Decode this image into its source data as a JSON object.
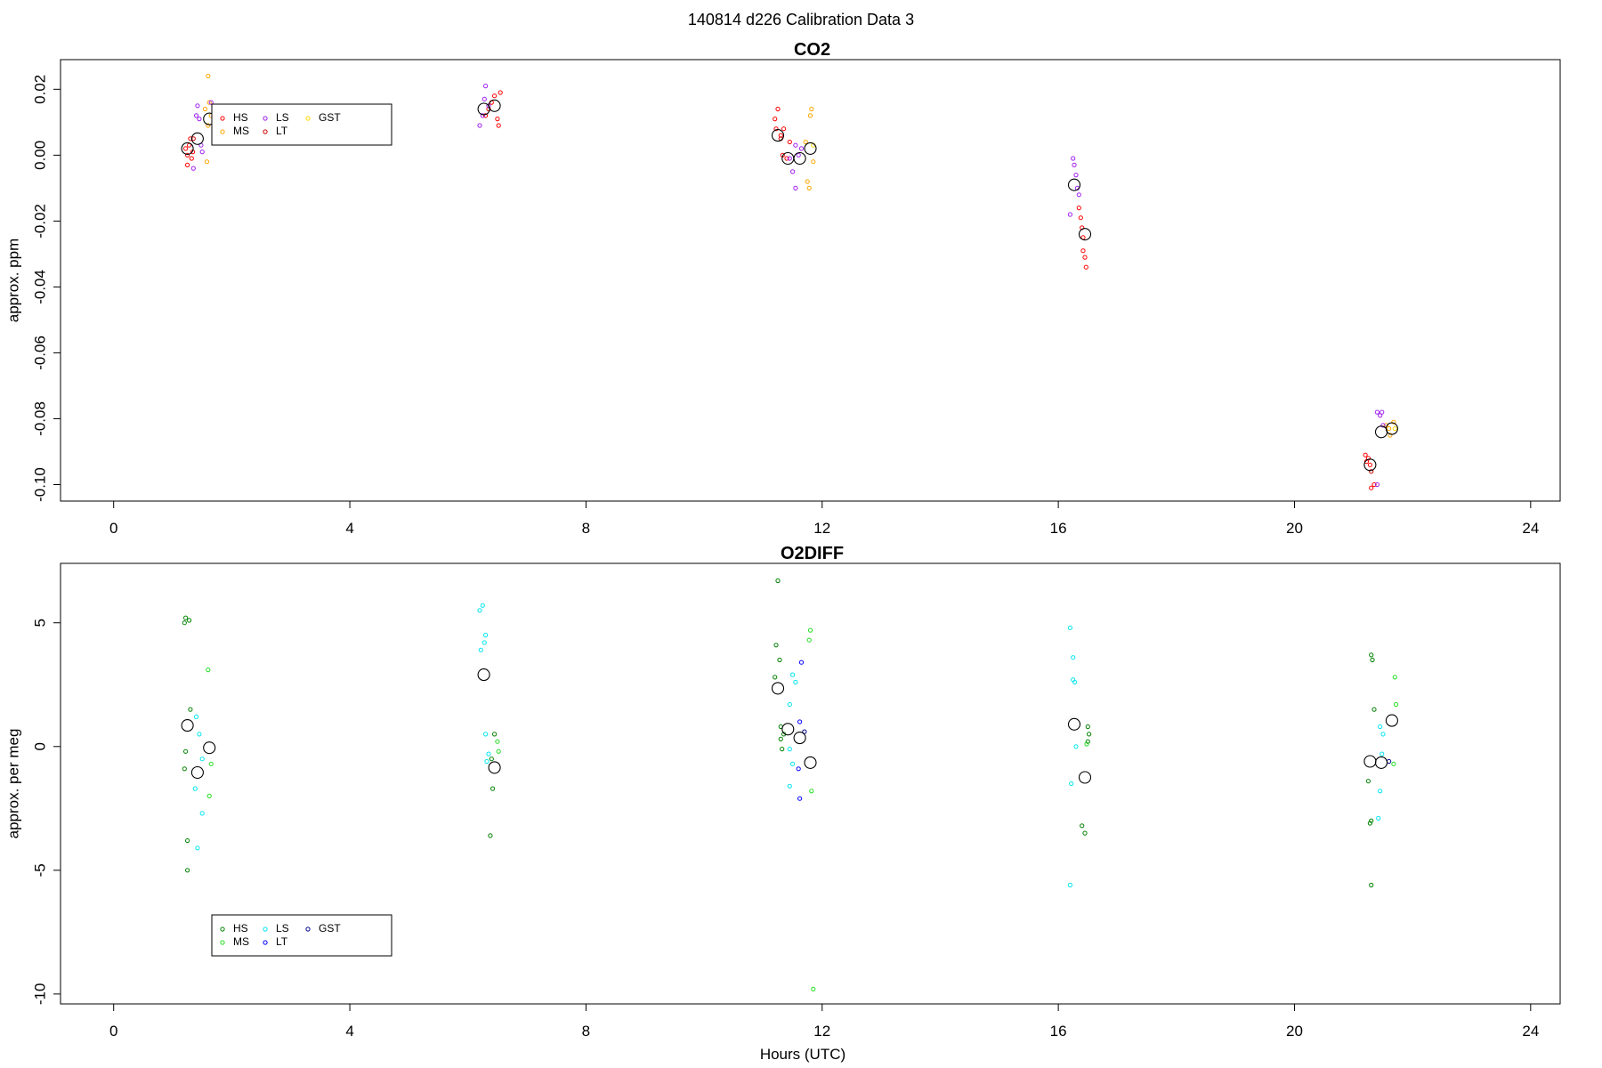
{
  "page": {
    "title": "140814   d226   Calibration Data 3",
    "xlabel": "Hours (UTC)"
  },
  "chart_data": [
    {
      "type": "scatter",
      "title": "CO2",
      "ylabel": "approx. ppm",
      "xlim": [
        -0.9,
        24.5
      ],
      "ylim": [
        -0.105,
        0.029
      ],
      "xticks": [
        0,
        4,
        8,
        12,
        16,
        20,
        24
      ],
      "yticks": [
        0.02,
        0.0,
        -0.02,
        -0.04,
        -0.06,
        -0.08,
        -0.1
      ],
      "ytick_labels": [
        "0.02",
        "0.00",
        "-0.02",
        "-0.04",
        "-0.06",
        "-0.08",
        "-0.10"
      ],
      "legend": {
        "placement": "top-left",
        "entries": [
          "HS",
          "MS",
          "LS",
          "LT",
          "GST"
        ]
      },
      "series": [
        {
          "name": "HS",
          "color": "#ff0000",
          "marker": "small-circle",
          "points": [
            [
              1.22,
              0.002
            ],
            [
              1.25,
              -0.003
            ],
            [
              1.28,
              0.003
            ],
            [
              1.3,
              0.005
            ],
            [
              1.32,
              -0.001
            ],
            [
              1.34,
              0.001
            ],
            [
              1.25,
              0.0
            ],
            [
              6.3,
              0.012
            ],
            [
              6.35,
              0.014
            ],
            [
              6.4,
              0.016
            ],
            [
              6.45,
              0.018
            ],
            [
              6.5,
              0.011
            ],
            [
              6.52,
              0.009
            ],
            [
              6.55,
              0.019
            ],
            [
              11.2,
              0.011
            ],
            [
              11.22,
              0.008
            ],
            [
              11.25,
              0.014
            ],
            [
              11.3,
              0.006
            ],
            [
              11.33,
              0.0
            ],
            [
              11.35,
              0.008
            ],
            [
              11.4,
              -0.001
            ],
            [
              11.45,
              0.004
            ],
            [
              16.35,
              -0.016
            ],
            [
              16.38,
              -0.019
            ],
            [
              16.4,
              -0.022
            ],
            [
              16.42,
              -0.025
            ],
            [
              16.42,
              -0.029
            ],
            [
              16.45,
              -0.031
            ],
            [
              16.47,
              -0.034
            ],
            [
              21.2,
              -0.091
            ],
            [
              21.22,
              -0.093
            ],
            [
              21.25,
              -0.092
            ],
            [
              21.28,
              -0.094
            ],
            [
              21.3,
              -0.101
            ],
            [
              21.35,
              -0.1
            ]
          ]
        },
        {
          "name": "MS",
          "color": "#ffa500",
          "marker": "small-circle",
          "points": [
            [
              1.6,
              0.024
            ],
            [
              1.62,
              0.016
            ],
            [
              1.65,
              0.012
            ],
            [
              1.55,
              0.014
            ],
            [
              1.58,
              -0.002
            ],
            [
              1.6,
              0.009
            ],
            [
              11.75,
              -0.008
            ],
            [
              11.78,
              -0.01
            ],
            [
              11.8,
              0.012
            ],
            [
              11.82,
              0.014
            ],
            [
              11.72,
              0.004
            ],
            [
              11.85,
              -0.002
            ],
            [
              21.55,
              -0.082
            ],
            [
              21.6,
              -0.083
            ],
            [
              21.62,
              -0.085
            ],
            [
              21.68,
              -0.081
            ]
          ]
        },
        {
          "name": "LS",
          "color": "#a020f0",
          "marker": "small-circle",
          "points": [
            [
              1.35,
              -0.004
            ],
            [
              1.4,
              0.012
            ],
            [
              1.42,
              0.015
            ],
            [
              1.45,
              0.011
            ],
            [
              1.48,
              0.003
            ],
            [
              1.5,
              0.001
            ],
            [
              1.65,
              0.016
            ],
            [
              6.2,
              0.009
            ],
            [
              6.25,
              0.012
            ],
            [
              6.28,
              0.017
            ],
            [
              6.3,
              0.021
            ],
            [
              6.35,
              0.015
            ],
            [
              11.45,
              -0.001
            ],
            [
              11.5,
              -0.005
            ],
            [
              11.55,
              -0.01
            ],
            [
              11.6,
              0.0
            ],
            [
              11.65,
              0.002
            ],
            [
              11.55,
              0.003
            ],
            [
              16.2,
              -0.018
            ],
            [
              16.25,
              -0.001
            ],
            [
              16.27,
              -0.003
            ],
            [
              16.3,
              -0.006
            ],
            [
              16.32,
              -0.01
            ],
            [
              16.35,
              -0.012
            ],
            [
              21.4,
              -0.078
            ],
            [
              21.45,
              -0.079
            ],
            [
              21.48,
              -0.078
            ],
            [
              21.4,
              -0.1
            ],
            [
              21.5,
              -0.082
            ]
          ]
        },
        {
          "name": "LT",
          "color": "#cc0000",
          "marker": "small-circle",
          "points": [
            [
              1.35,
              0.005
            ],
            [
              11.3,
              0.005
            ],
            [
              21.3,
              -0.096
            ]
          ]
        },
        {
          "name": "GST",
          "color": "#ffd700",
          "marker": "small-circle",
          "points": [
            [
              1.7,
              0.013
            ],
            [
              11.85,
              0.003
            ],
            [
              21.7,
              -0.083
            ]
          ]
        },
        {
          "name": "",
          "color": "#000000",
          "marker": "large-circle",
          "points": [
            [
              1.25,
              0.002
            ],
            [
              1.42,
              0.005
            ],
            [
              1.62,
              0.011
            ],
            [
              6.27,
              0.014
            ],
            [
              6.45,
              0.015
            ],
            [
              11.25,
              0.006
            ],
            [
              11.42,
              -0.001
            ],
            [
              11.62,
              -0.001
            ],
            [
              11.8,
              0.002
            ],
            [
              16.27,
              -0.009
            ],
            [
              16.45,
              -0.024
            ],
            [
              21.28,
              -0.094
            ],
            [
              21.47,
              -0.084
            ],
            [
              21.65,
              -0.083
            ]
          ]
        }
      ]
    },
    {
      "type": "scatter",
      "title": "O2DIFF",
      "ylabel": "approx. per meg",
      "xlim": [
        -0.9,
        24.5
      ],
      "ylim": [
        -10.4,
        7.4
      ],
      "xticks": [
        0,
        4,
        8,
        12,
        16,
        20,
        24
      ],
      "yticks": [
        5,
        0,
        -5,
        -10
      ],
      "ytick_labels": [
        "5",
        "0",
        "-5",
        "-10"
      ],
      "legend": {
        "placement": "bottom-left",
        "entries": [
          "HS",
          "MS",
          "LS",
          "LT",
          "GST"
        ]
      },
      "series": [
        {
          "name": "HS",
          "color": "#008000",
          "marker": "small-circle",
          "points": [
            [
              1.2,
              5.0
            ],
            [
              1.22,
              5.2
            ],
            [
              1.28,
              5.1
            ],
            [
              1.3,
              1.5
            ],
            [
              1.22,
              -0.2
            ],
            [
              1.2,
              -0.9
            ],
            [
              1.25,
              -3.8
            ],
            [
              1.25,
              -5.0
            ],
            [
              6.45,
              0.5
            ],
            [
              6.4,
              -0.5
            ],
            [
              6.42,
              -1.7
            ],
            [
              6.38,
              -3.6
            ],
            [
              11.25,
              6.7
            ],
            [
              11.22,
              4.1
            ],
            [
              11.28,
              3.5
            ],
            [
              11.2,
              2.8
            ],
            [
              11.3,
              0.8
            ],
            [
              11.35,
              0.5
            ],
            [
              11.3,
              0.3
            ],
            [
              11.32,
              -0.1
            ],
            [
              16.5,
              0.8
            ],
            [
              16.52,
              0.5
            ],
            [
              16.5,
              0.2
            ],
            [
              16.4,
              -3.2
            ],
            [
              16.45,
              -3.5
            ],
            [
              21.3,
              3.7
            ],
            [
              21.32,
              3.5
            ],
            [
              21.35,
              1.5
            ],
            [
              21.25,
              -1.4
            ],
            [
              21.3,
              -3.0
            ],
            [
              21.28,
              -3.1
            ],
            [
              21.3,
              -5.6
            ]
          ]
        },
        {
          "name": "MS",
          "color": "#22dd22",
          "marker": "small-circle",
          "points": [
            [
              1.6,
              3.1
            ],
            [
              1.65,
              -0.7
            ],
            [
              1.62,
              -2.0
            ],
            [
              6.5,
              0.2
            ],
            [
              6.52,
              -0.2
            ],
            [
              11.8,
              4.7
            ],
            [
              11.78,
              4.3
            ],
            [
              11.82,
              -1.8
            ],
            [
              11.85,
              -9.8
            ],
            [
              16.48,
              0.1
            ],
            [
              21.7,
              2.8
            ],
            [
              21.72,
              1.7
            ],
            [
              21.68,
              -0.7
            ]
          ]
        },
        {
          "name": "LS",
          "color": "#00e5ee",
          "marker": "small-circle",
          "points": [
            [
              1.4,
              1.2
            ],
            [
              1.45,
              0.5
            ],
            [
              1.5,
              -0.5
            ],
            [
              1.38,
              -1.7
            ],
            [
              1.5,
              -2.7
            ],
            [
              1.42,
              -4.1
            ],
            [
              6.2,
              5.5
            ],
            [
              6.25,
              5.7
            ],
            [
              6.3,
              4.5
            ],
            [
              6.28,
              4.2
            ],
            [
              6.22,
              3.9
            ],
            [
              6.3,
              0.5
            ],
            [
              6.35,
              -0.3
            ],
            [
              6.32,
              -0.6
            ],
            [
              11.5,
              2.9
            ],
            [
              11.55,
              2.6
            ],
            [
              11.45,
              1.7
            ],
            [
              11.45,
              -0.1
            ],
            [
              11.5,
              -0.7
            ],
            [
              11.45,
              -1.6
            ],
            [
              16.2,
              4.8
            ],
            [
              16.25,
              3.6
            ],
            [
              16.25,
              2.7
            ],
            [
              16.28,
              2.6
            ],
            [
              16.3,
              0.0
            ],
            [
              16.22,
              -1.5
            ],
            [
              16.2,
              -5.6
            ],
            [
              21.45,
              0.8
            ],
            [
              21.5,
              0.5
            ],
            [
              21.48,
              -0.3
            ],
            [
              21.45,
              -1.8
            ],
            [
              21.42,
              -2.9
            ]
          ]
        },
        {
          "name": "LT",
          "color": "#0000ff",
          "marker": "small-circle",
          "points": [
            [
              11.65,
              3.4
            ],
            [
              11.62,
              1.0
            ],
            [
              11.6,
              -0.9
            ],
            [
              11.62,
              -2.1
            ]
          ]
        },
        {
          "name": "GST",
          "color": "#00008b",
          "marker": "small-circle",
          "points": [
            [
              11.7,
              0.6
            ],
            [
              21.6,
              -0.6
            ]
          ]
        },
        {
          "name": "",
          "color": "#000000",
          "marker": "large-circle",
          "points": [
            [
              1.25,
              0.85
            ],
            [
              1.42,
              -1.05
            ],
            [
              1.62,
              -0.05
            ],
            [
              6.27,
              2.9
            ],
            [
              6.45,
              -0.85
            ],
            [
              11.25,
              2.35
            ],
            [
              11.42,
              0.7
            ],
            [
              11.62,
              0.35
            ],
            [
              11.8,
              -0.65
            ],
            [
              16.27,
              0.9
            ],
            [
              16.45,
              -1.25
            ],
            [
              21.28,
              -0.6
            ],
            [
              21.47,
              -0.65
            ],
            [
              21.65,
              1.05
            ]
          ]
        }
      ]
    }
  ]
}
